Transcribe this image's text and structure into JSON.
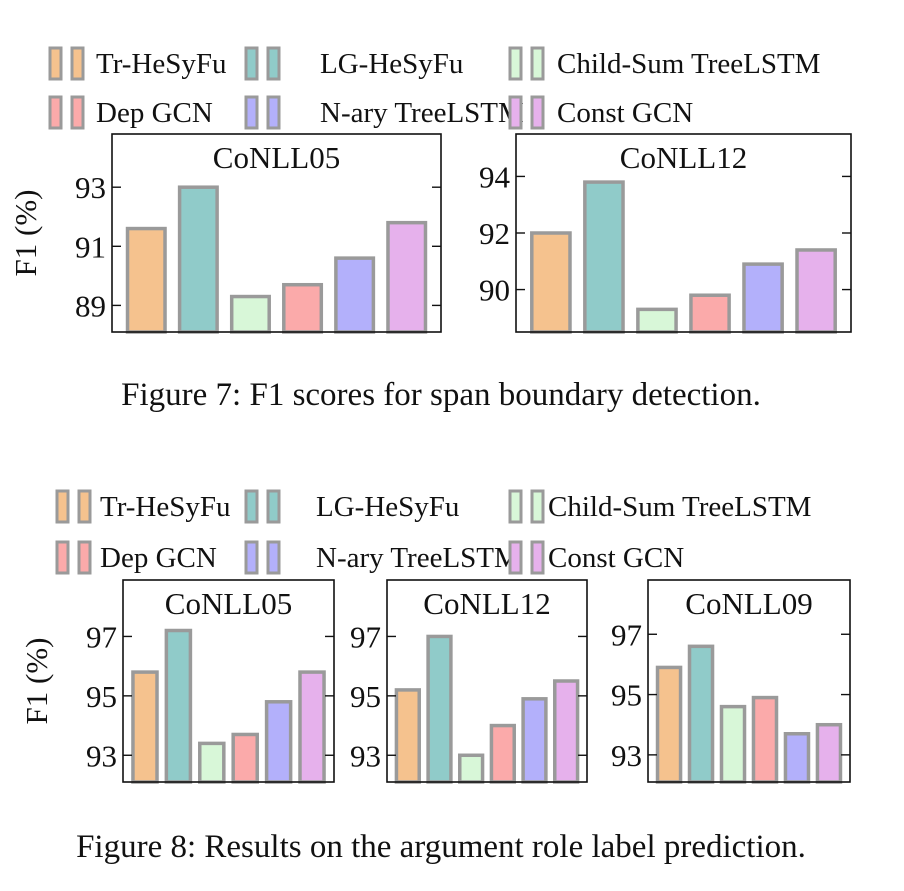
{
  "legend_series": [
    {
      "name": "Tr-HeSyFu",
      "color": "#f5c28e"
    },
    {
      "name": "LG-HeSyFu",
      "color": "#90cbc9"
    },
    {
      "name": "Child-Sum TreeLSTM",
      "color": "#d8f7d8"
    },
    {
      "name": "Dep GCN",
      "color": "#fbaaaa"
    },
    {
      "name": "N-ary TreeLSTM",
      "color": "#b3b0fb"
    },
    {
      "name": "Const GCN",
      "color": "#e6b1ec"
    }
  ],
  "figures": [
    {
      "caption": "Figure 7: F1 scores for span boundary detection.",
      "ylabel": "F1 (%)"
    },
    {
      "caption": "Figure 8: Results on the argument role label prediction.",
      "ylabel": "F1 (%)"
    }
  ],
  "chart_data": [
    {
      "type": "bar",
      "figure": 0,
      "title": "CoNLL05",
      "ylabel": "F1 (%)",
      "categories": [
        "Tr-HeSyFu",
        "LG-HeSyFu",
        "Child-Sum TreeLSTM",
        "Dep GCN",
        "N-ary TreeLSTM",
        "Const GCN"
      ],
      "values": [
        91.6,
        93.0,
        89.3,
        89.7,
        90.6,
        91.8
      ],
      "ylim": [
        88.1,
        94.8
      ],
      "yticks": [
        89,
        91,
        93
      ],
      "grid": false
    },
    {
      "type": "bar",
      "figure": 0,
      "title": "CoNLL12",
      "categories": [
        "Tr-HeSyFu",
        "LG-HeSyFu",
        "Child-Sum TreeLSTM",
        "Dep GCN",
        "N-ary TreeLSTM",
        "Const GCN"
      ],
      "values": [
        92.0,
        93.8,
        89.3,
        89.8,
        90.9,
        91.4
      ],
      "ylim": [
        88.5,
        95.5
      ],
      "yticks": [
        90,
        92,
        94
      ],
      "grid": false
    },
    {
      "type": "bar",
      "figure": 1,
      "title": "CoNLL05",
      "ylabel": "F1 (%)",
      "categories": [
        "Tr-HeSyFu",
        "LG-HeSyFu",
        "Child-Sum TreeLSTM",
        "Dep GCN",
        "N-ary TreeLSTM",
        "Const GCN"
      ],
      "values": [
        95.8,
        97.2,
        93.4,
        93.7,
        94.8,
        95.8
      ],
      "ylim": [
        92.1,
        98.9
      ],
      "yticks": [
        93,
        95,
        97
      ],
      "grid": false
    },
    {
      "type": "bar",
      "figure": 1,
      "title": "CoNLL12",
      "categories": [
        "Tr-HeSyFu",
        "LG-HeSyFu",
        "Child-Sum TreeLSTM",
        "Dep GCN",
        "N-ary TreeLSTM",
        "Const GCN"
      ],
      "values": [
        95.2,
        97.0,
        93.0,
        94.0,
        94.9,
        95.5
      ],
      "ylim": [
        92.1,
        98.9
      ],
      "yticks": [
        93,
        95,
        97
      ],
      "grid": false
    },
    {
      "type": "bar",
      "figure": 1,
      "title": "CoNLL09",
      "categories": [
        "Tr-HeSyFu",
        "LG-HeSyFu",
        "Child-Sum TreeLSTM",
        "Dep GCN",
        "N-ary TreeLSTM",
        "Const GCN"
      ],
      "values": [
        95.9,
        96.6,
        94.6,
        94.9,
        93.7,
        94.0
      ],
      "ylim": [
        92.1,
        98.8
      ],
      "yticks": [
        93,
        95,
        97
      ],
      "grid": false
    }
  ]
}
